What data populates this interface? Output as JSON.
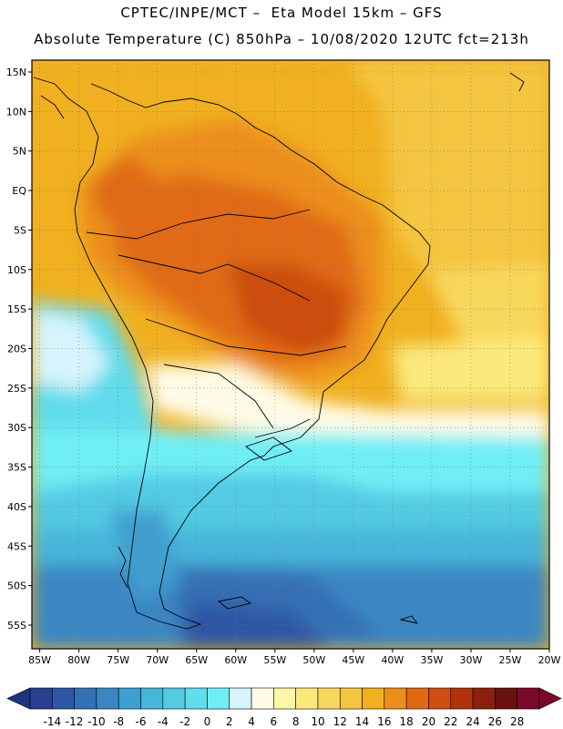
{
  "header": {
    "line1": "CPTEC/INPE/MCT –  Eta Model 15km – GFS",
    "line2": "Absolute Temperature (C) 850hPa – 10/08/2020 12UTC fct=213h"
  },
  "map": {
    "variable": "Absolute Temperature",
    "units": "C",
    "level": "850hPa",
    "lat_range": [
      -58,
      16.5
    ],
    "lon_range": [
      -86,
      -20
    ],
    "lat_labels": [
      {
        "value": 15,
        "label": "15N"
      },
      {
        "value": 10,
        "label": "10N"
      },
      {
        "value": 5,
        "label": "5N"
      },
      {
        "value": 0,
        "label": "EQ"
      },
      {
        "value": -5,
        "label": "5S"
      },
      {
        "value": -10,
        "label": "10S"
      },
      {
        "value": -15,
        "label": "15S"
      },
      {
        "value": -20,
        "label": "20S"
      },
      {
        "value": -25,
        "label": "25S"
      },
      {
        "value": -30,
        "label": "30S"
      },
      {
        "value": -35,
        "label": "35S"
      },
      {
        "value": -40,
        "label": "40S"
      },
      {
        "value": -45,
        "label": "45S"
      },
      {
        "value": -50,
        "label": "50S"
      },
      {
        "value": -55,
        "label": "55S"
      }
    ],
    "lon_labels": [
      {
        "value": -85,
        "label": "85W"
      },
      {
        "value": -80,
        "label": "80W"
      },
      {
        "value": -75,
        "label": "75W"
      },
      {
        "value": -70,
        "label": "70W"
      },
      {
        "value": -65,
        "label": "65W"
      },
      {
        "value": -60,
        "label": "60W"
      },
      {
        "value": -55,
        "label": "55W"
      },
      {
        "value": -50,
        "label": "50W"
      },
      {
        "value": -45,
        "label": "45W"
      },
      {
        "value": -40,
        "label": "40W"
      },
      {
        "value": -35,
        "label": "35W"
      },
      {
        "value": -30,
        "label": "30W"
      },
      {
        "value": -25,
        "label": "25W"
      },
      {
        "value": -20,
        "label": "20W"
      }
    ]
  },
  "colorbar": {
    "labels": [
      "-14",
      "-12",
      "-10",
      "-8",
      "-6",
      "-4",
      "-2",
      "0",
      "2",
      "4",
      "6",
      "8",
      "10",
      "12",
      "14",
      "16",
      "18",
      "20",
      "22",
      "24",
      "26",
      "28"
    ],
    "colors": [
      "#2a3f8f",
      "#2f57a4",
      "#3470b4",
      "#3b86c3",
      "#3f9fcf",
      "#46b6da",
      "#53cbe3",
      "#60dcec",
      "#70eef5",
      "#d5f4fb",
      "#fffbe6",
      "#fdf6a8",
      "#fbe97c",
      "#f8d85c",
      "#f4c540",
      "#f0b020",
      "#ec8e1c",
      "#e06a14",
      "#cc4e10",
      "#b0330c",
      "#8c200c",
      "#6a1010",
      "#7a0a2a"
    ],
    "under_color": "#1f3380",
    "over_color": "#7a0a2a"
  }
}
